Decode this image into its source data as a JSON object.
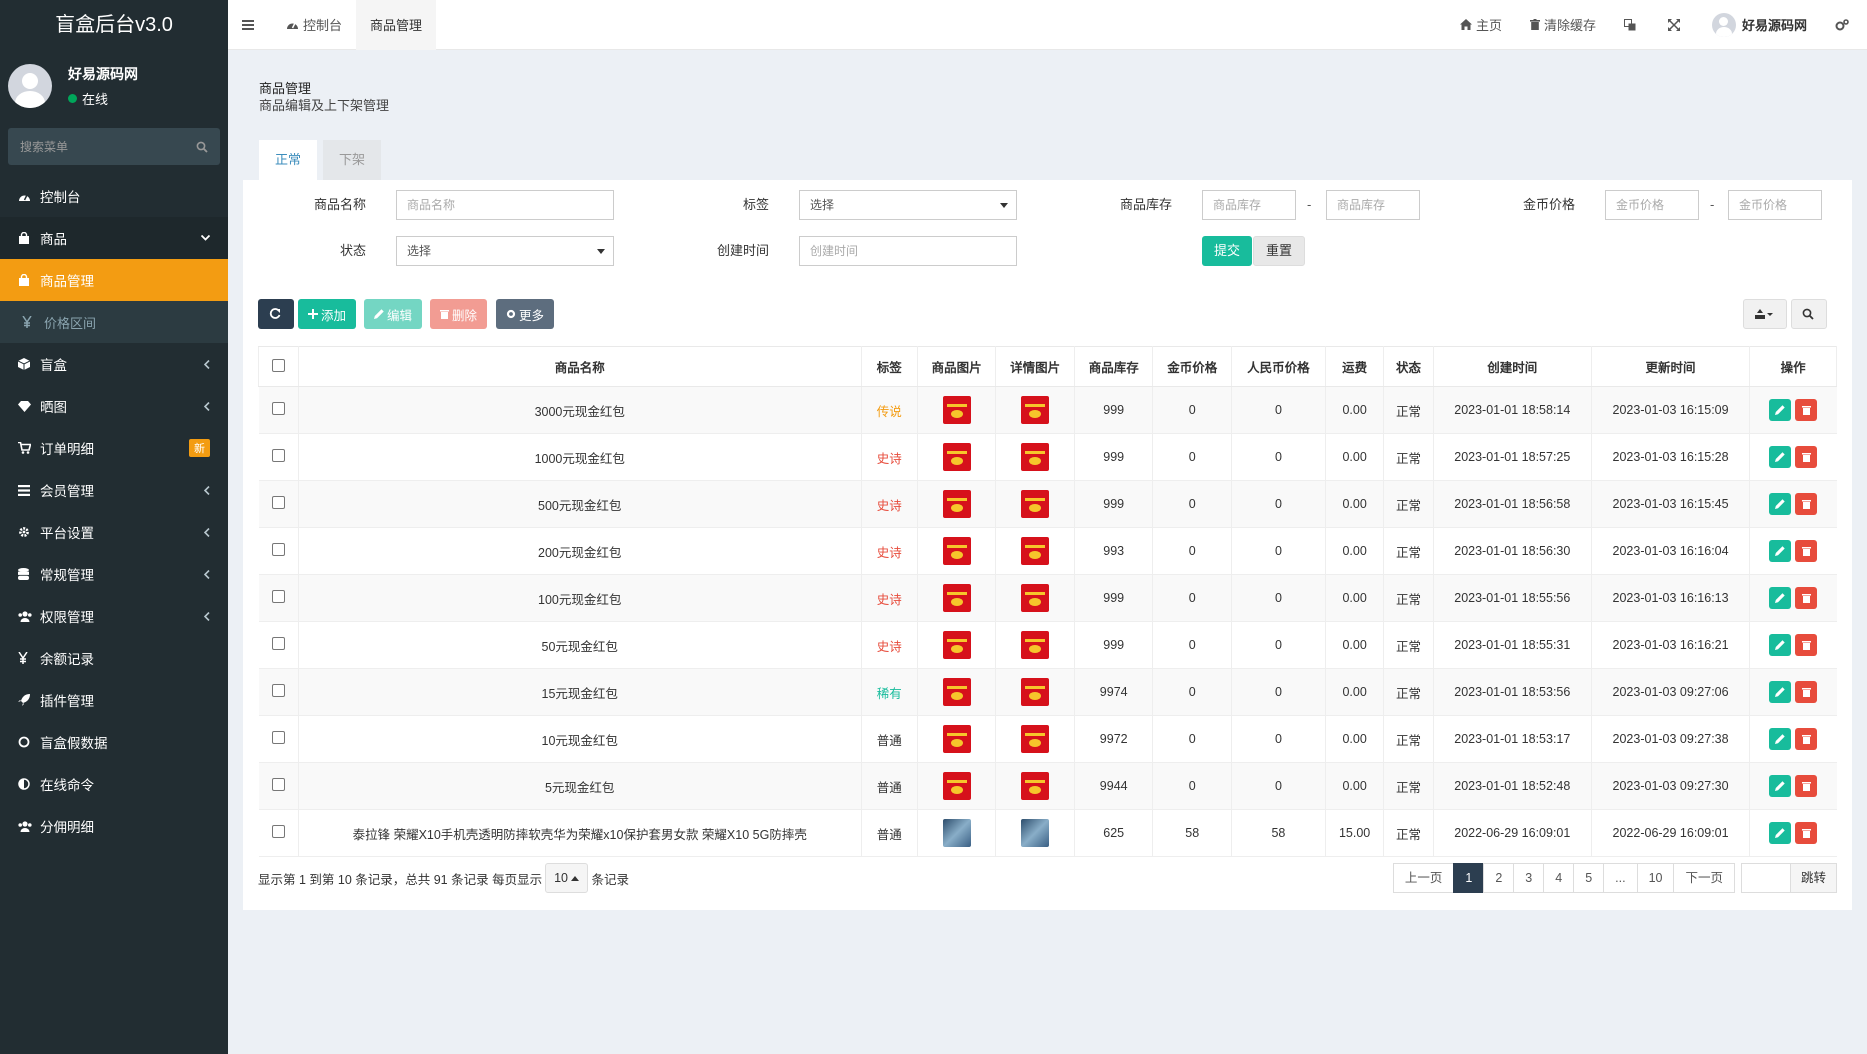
{
  "sidebar": {
    "logo": "盲盒后台v3.0",
    "user": {
      "name": "好易源码网",
      "status": "在线"
    },
    "search_placeholder": "搜索菜单",
    "items": [
      {
        "key": "dashboard",
        "label": "控制台",
        "icon": "dashboard-icon"
      },
      {
        "key": "goods",
        "label": "商品",
        "icon": "shopping-bag-icon",
        "chev": "down",
        "state": "active-parent"
      },
      {
        "key": "goods-manage",
        "label": "商品管理",
        "icon": "shopping-bag-icon",
        "state": "active"
      },
      {
        "key": "price-range",
        "label": "价格区间",
        "icon": "yen-icon",
        "state": "sub"
      },
      {
        "key": "blindbox",
        "label": "盲盒",
        "icon": "cube-icon",
        "chev": "left"
      },
      {
        "key": "share",
        "label": "晒图",
        "icon": "diamond-icon",
        "chev": "left"
      },
      {
        "key": "orders",
        "label": "订单明细",
        "icon": "cart-icon",
        "badge": "新"
      },
      {
        "key": "members",
        "label": "会员管理",
        "icon": "list-icon",
        "chev": "left"
      },
      {
        "key": "platform",
        "label": "平台设置",
        "icon": "gear-icon",
        "chev": "left"
      },
      {
        "key": "routine",
        "label": "常规管理",
        "icon": "database-icon",
        "chev": "left"
      },
      {
        "key": "permission",
        "label": "权限管理",
        "icon": "users-icon",
        "chev": "left"
      },
      {
        "key": "balance",
        "label": "余额记录",
        "icon": "yen-icon"
      },
      {
        "key": "plugins",
        "label": "插件管理",
        "icon": "rocket-icon"
      },
      {
        "key": "fakedata",
        "label": "盲盒假数据",
        "icon": "circle-icon"
      },
      {
        "key": "command",
        "label": "在线命令",
        "icon": "half-circle-icon"
      },
      {
        "key": "commission",
        "label": "分佣明细",
        "icon": "users-icon"
      }
    ]
  },
  "header": {
    "tabs": [
      {
        "label": "控制台"
      },
      {
        "label": "商品管理"
      }
    ],
    "home": "主页",
    "clear_cache": "清除缓存",
    "username": "好易源码网"
  },
  "page": {
    "title": "商品管理",
    "subtitle": "商品编辑及上下架管理",
    "tabs": [
      "正常",
      "下架"
    ]
  },
  "filters": {
    "name_label": "商品名称",
    "name_placeholder": "商品名称",
    "tag_label": "标签",
    "tag_value": "选择",
    "stock_label": "商品库存",
    "stock_placeholder": "商品库存",
    "gold_label": "金币价格",
    "gold_placeholder": "金币价格",
    "dash": "-",
    "status_label": "状态",
    "status_value": "选择",
    "time_label": "创建时间",
    "time_placeholder": "创建时间",
    "submit": "提交",
    "reset": "重置"
  },
  "toolbar": {
    "add": "添加",
    "edit": "编辑",
    "delete": "删除",
    "more": "更多"
  },
  "table": {
    "columns": [
      "商品名称",
      "标签",
      "商品图片",
      "详情图片",
      "商品库存",
      "金币价格",
      "人民币价格",
      "运费",
      "状态",
      "创建时间",
      "更新时间",
      "操作"
    ],
    "rows": [
      {
        "name": "3000元现金红包",
        "tag": "传说",
        "tagc": "gold",
        "img": "red",
        "stock": "999",
        "gold": "0",
        "rmb": "0",
        "ship": "0.00",
        "status": "正常",
        "created": "2023-01-01 18:58:14",
        "updated": "2023-01-03 16:15:09"
      },
      {
        "name": "1000元现金红包",
        "tag": "史诗",
        "tagc": "red",
        "img": "red",
        "stock": "999",
        "gold": "0",
        "rmb": "0",
        "ship": "0.00",
        "status": "正常",
        "created": "2023-01-01 18:57:25",
        "updated": "2023-01-03 16:15:28"
      },
      {
        "name": "500元现金红包",
        "tag": "史诗",
        "tagc": "red",
        "img": "red",
        "stock": "999",
        "gold": "0",
        "rmb": "0",
        "ship": "0.00",
        "status": "正常",
        "created": "2023-01-01 18:56:58",
        "updated": "2023-01-03 16:15:45"
      },
      {
        "name": "200元现金红包",
        "tag": "史诗",
        "tagc": "red",
        "img": "red",
        "stock": "993",
        "gold": "0",
        "rmb": "0",
        "ship": "0.00",
        "status": "正常",
        "created": "2023-01-01 18:56:30",
        "updated": "2023-01-03 16:16:04"
      },
      {
        "name": "100元现金红包",
        "tag": "史诗",
        "tagc": "red",
        "img": "red",
        "stock": "999",
        "gold": "0",
        "rmb": "0",
        "ship": "0.00",
        "status": "正常",
        "created": "2023-01-01 18:55:56",
        "updated": "2023-01-03 16:16:13"
      },
      {
        "name": "50元现金红包",
        "tag": "史诗",
        "tagc": "red",
        "img": "red",
        "stock": "999",
        "gold": "0",
        "rmb": "0",
        "ship": "0.00",
        "status": "正常",
        "created": "2023-01-01 18:55:31",
        "updated": "2023-01-03 16:16:21"
      },
      {
        "name": "15元现金红包",
        "tag": "稀有",
        "tagc": "green",
        "img": "red",
        "stock": "9974",
        "gold": "0",
        "rmb": "0",
        "ship": "0.00",
        "status": "正常",
        "created": "2023-01-01 18:53:56",
        "updated": "2023-01-03 09:27:06"
      },
      {
        "name": "10元现金红包",
        "tag": "普通",
        "tagc": "plain",
        "img": "red",
        "stock": "9972",
        "gold": "0",
        "rmb": "0",
        "ship": "0.00",
        "status": "正常",
        "created": "2023-01-01 18:53:17",
        "updated": "2023-01-03 09:27:38"
      },
      {
        "name": "5元现金红包",
        "tag": "普通",
        "tagc": "plain",
        "img": "red",
        "stock": "9944",
        "gold": "0",
        "rmb": "0",
        "ship": "0.00",
        "status": "正常",
        "created": "2023-01-01 18:52:48",
        "updated": "2023-01-03 09:27:30"
      },
      {
        "name": "泰拉锋 荣耀X10手机壳透明防摔软壳华为荣耀x10保护套男女款 荣耀X10 5G防摔壳",
        "tag": "普通",
        "tagc": "plain",
        "img": "phone",
        "stock": "625",
        "gold": "58",
        "rmb": "58",
        "ship": "15.00",
        "status": "正常",
        "created": "2022-06-29 16:09:01",
        "updated": "2022-06-29 16:09:01"
      }
    ]
  },
  "footer": {
    "info_prefix": "显示第 1 到第 10 条记录，总共 91 条记录 每页显示",
    "page_size": "10",
    "info_suffix": "条记录",
    "prev": "上一页",
    "pages": [
      "1",
      "2",
      "3",
      "4",
      "5",
      "...",
      "10"
    ],
    "current": "1",
    "next": "下一页",
    "go": "跳转"
  },
  "colors": {
    "sidebar": "#222d32",
    "active": "#f39c12",
    "success": "#18bc9c",
    "danger": "#e74c3c",
    "primary": "#2c3e50"
  }
}
